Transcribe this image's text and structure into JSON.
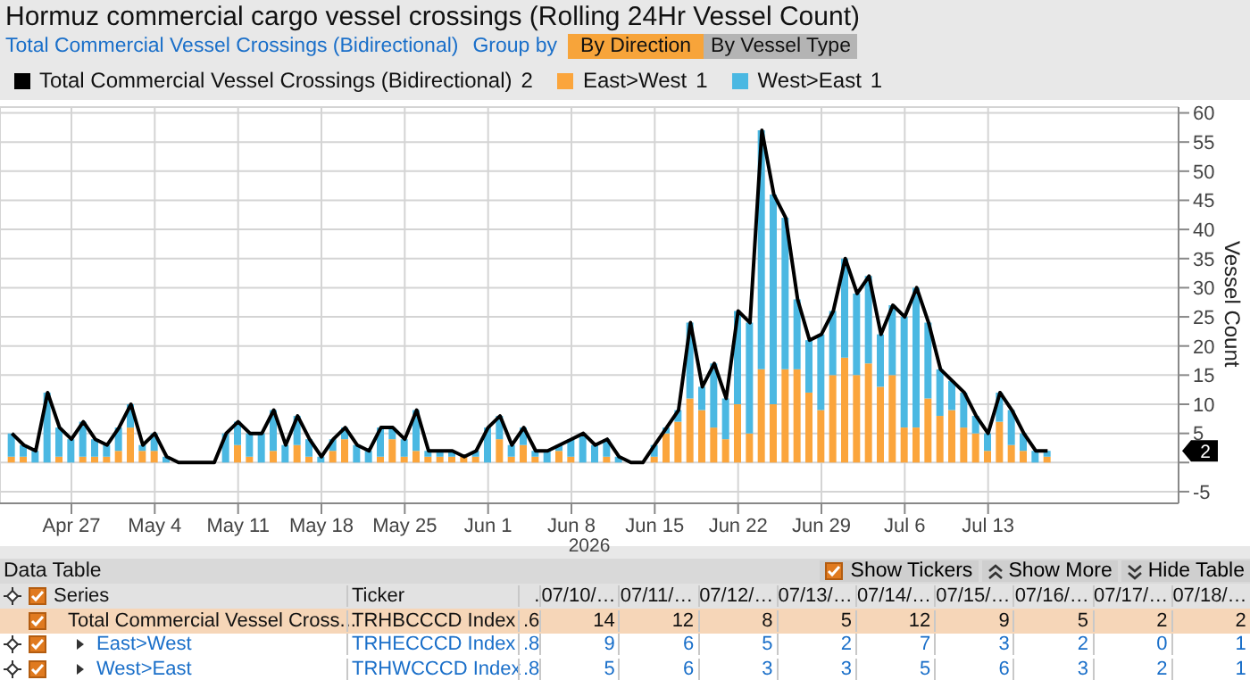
{
  "chart_data": {
    "type": "bar",
    "stacked": true,
    "title": "Hormuz commercial cargo vessel crossings (Rolling 24Hr Vessel Count)",
    "subtitle": "Total Commercial Vessel Crossings (Bidirectional)",
    "ylabel": "Vessel Count",
    "annotations": [
      "Group by",
      "By Direction",
      "By Vessel Type",
      "2026",
      "Data Table",
      "Show Tickers",
      "Show More",
      "Hide Table",
      "Series",
      "Ticker",
      "TRHBCCCD Index",
      "TRHECCCD Index",
      "TRHWCCCD Index",
      "Total Commercial Vessel Cross...",
      "2",
      "1",
      "1",
      "2",
      ".",
      "07/10/…",
      "07/11/…",
      "07/12/…",
      "07/13/…",
      "07/14/…",
      "07/15/…",
      "07/16/…",
      "07/17/…",
      "07/18/…",
      ".6",
      "14",
      "12",
      "8",
      "5",
      "12",
      "9",
      "5",
      "2",
      "2",
      ".8",
      "9",
      "6",
      "5",
      "2",
      "7",
      "3",
      "2",
      "0",
      "1",
      ".8",
      "5",
      "6",
      "3",
      "3",
      "5",
      "6",
      "3",
      "2",
      "1"
    ],
    "x": [
      "2026-04-22",
      "2026-04-23",
      "2026-04-24",
      "2026-04-25",
      "2026-04-26",
      "2026-04-27",
      "2026-04-28",
      "2026-04-29",
      "2026-04-30",
      "2026-05-01",
      "2026-05-02",
      "2026-05-03",
      "2026-05-04",
      "2026-05-05",
      "2026-05-06",
      "2026-05-07",
      "2026-05-08",
      "2026-05-09",
      "2026-05-10",
      "2026-05-11",
      "2026-05-12",
      "2026-05-13",
      "2026-05-14",
      "2026-05-15",
      "2026-05-16",
      "2026-05-17",
      "2026-05-18",
      "2026-05-19",
      "2026-05-20",
      "2026-05-21",
      "2026-05-22",
      "2026-05-23",
      "2026-05-24",
      "2026-05-25",
      "2026-05-26",
      "2026-05-27",
      "2026-05-28",
      "2026-05-29",
      "2026-05-30",
      "2026-05-31",
      "2026-06-01",
      "2026-06-02",
      "2026-06-03",
      "2026-06-04",
      "2026-06-05",
      "2026-06-06",
      "2026-06-07",
      "2026-06-08",
      "2026-06-09",
      "2026-06-10",
      "2026-06-11",
      "2026-06-12",
      "2026-06-13",
      "2026-06-14",
      "2026-06-15",
      "2026-06-16",
      "2026-06-17",
      "2026-06-18",
      "2026-06-19",
      "2026-06-20",
      "2026-06-21",
      "2026-06-22",
      "2026-06-23",
      "2026-06-24",
      "2026-06-25",
      "2026-06-26",
      "2026-06-27",
      "2026-06-28",
      "2026-06-29",
      "2026-06-30",
      "2026-07-01",
      "2026-07-02",
      "2026-07-03",
      "2026-07-04",
      "2026-07-05",
      "2026-07-06",
      "2026-07-07",
      "2026-07-08",
      "2026-07-09",
      "2026-07-10",
      "2026-07-11",
      "2026-07-12",
      "2026-07-13",
      "2026-07-14",
      "2026-07-15",
      "2026-07-16",
      "2026-07-17",
      "2026-07-18"
    ],
    "series": [
      {
        "name": "Total Commercial Vessel Crossings (Bidirectional)",
        "type": "line",
        "color": "#000000",
        "values": [
          5,
          3,
          2,
          12,
          6,
          4,
          7,
          4,
          3,
          6,
          10,
          3,
          5,
          1,
          0,
          0,
          0,
          0,
          5,
          7,
          5,
          5,
          9,
          3,
          8,
          4,
          1,
          4,
          6,
          3,
          2,
          6,
          6,
          4,
          9,
          2,
          2,
          2,
          1,
          2,
          6,
          8,
          3,
          6,
          2,
          2,
          3,
          4,
          5,
          3,
          4,
          1,
          0,
          0,
          3,
          6,
          9,
          24,
          13,
          17,
          11,
          26,
          24,
          57,
          46,
          42,
          28,
          21,
          22,
          26,
          35,
          29,
          32,
          22,
          27,
          25,
          30,
          24,
          16,
          14,
          12,
          8,
          5,
          12,
          9,
          5,
          2,
          2
        ]
      },
      {
        "name": "East>West",
        "color": "#fba53c",
        "values": [
          1,
          1,
          0,
          0,
          1,
          0,
          1,
          1,
          1,
          2,
          6,
          2,
          2,
          0,
          0,
          0,
          0,
          0,
          0,
          3,
          1,
          0,
          2,
          0,
          3,
          1,
          0,
          2,
          4,
          0,
          0,
          1,
          4,
          1,
          2,
          1,
          1,
          1,
          1,
          1,
          0,
          4,
          1,
          3,
          1,
          0,
          2,
          1,
          0,
          0,
          1,
          0,
          0,
          0,
          1,
          5,
          7,
          11,
          9,
          6,
          4,
          10,
          5,
          16,
          10,
          16,
          16,
          12,
          9,
          15,
          18,
          15,
          17,
          13,
          15,
          6,
          6,
          11,
          8,
          9,
          6,
          5,
          2,
          7,
          3,
          2,
          0,
          1
        ]
      },
      {
        "name": "West>East",
        "color": "#4bb8e2",
        "values": [
          4,
          2,
          2,
          12,
          5,
          4,
          6,
          3,
          2,
          4,
          4,
          1,
          3,
          1,
          0,
          0,
          0,
          0,
          5,
          4,
          4,
          5,
          7,
          3,
          5,
          3,
          1,
          2,
          2,
          3,
          2,
          5,
          2,
          3,
          7,
          1,
          1,
          1,
          0,
          1,
          6,
          4,
          2,
          3,
          1,
          2,
          1,
          3,
          5,
          3,
          3,
          1,
          0,
          0,
          2,
          1,
          2,
          13,
          4,
          11,
          7,
          16,
          19,
          41,
          36,
          26,
          12,
          9,
          13,
          11,
          17,
          14,
          15,
          9,
          12,
          19,
          24,
          13,
          8,
          5,
          6,
          3,
          3,
          5,
          6,
          3,
          2,
          1
        ]
      }
    ],
    "xlim": [
      "2026-04-21",
      "2026-07-29"
    ],
    "xticks": [
      {
        "value": "2026-04-27",
        "label": "Apr 27"
      },
      {
        "value": "2026-05-04",
        "label": "May 4"
      },
      {
        "value": "2026-05-11",
        "label": "May 11"
      },
      {
        "value": "2026-05-18",
        "label": "May 18"
      },
      {
        "value": "2026-05-25",
        "label": "May 25"
      },
      {
        "value": "2026-06-01",
        "label": "Jun 1"
      },
      {
        "value": "2026-06-08",
        "label": "Jun 8"
      },
      {
        "value": "2026-06-15",
        "label": "Jun 15"
      },
      {
        "value": "2026-06-22",
        "label": "Jun 22"
      },
      {
        "value": "2026-06-29",
        "label": "Jun 29"
      },
      {
        "value": "2026-07-06",
        "label": "Jul 6"
      },
      {
        "value": "2026-07-13",
        "label": "Jul 13"
      }
    ],
    "ylim": [
      -7,
      61
    ],
    "yticks": [
      -5,
      {
        "value": 0,
        "label": null
      },
      5,
      10,
      15,
      20,
      25,
      30,
      35,
      40,
      45,
      50,
      55,
      60
    ],
    "grid": true,
    "legend": "top left"
  }
}
